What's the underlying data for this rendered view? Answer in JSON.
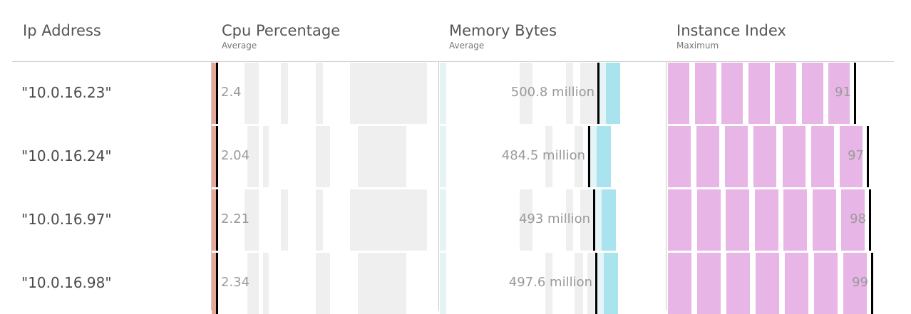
{
  "columns": [
    {
      "title": "Ip Address",
      "subtitle": ""
    },
    {
      "title": "Cpu Percentage",
      "subtitle": "Average"
    },
    {
      "title": "Memory Bytes",
      "subtitle": "Average"
    },
    {
      "title": "Instance Index",
      "subtitle": "Maximum"
    }
  ],
  "colors": {
    "cpu": "#e8a898",
    "memory": "#a9e3ee",
    "instance": "#e7b5e6",
    "marker": "#000000",
    "background_bars": "#efefef"
  },
  "chart_data": {
    "type": "table",
    "rows": [
      {
        "ip": "\"10.0.16.23\"",
        "cpu": 2.4,
        "cpu_label": "2.4",
        "memory": 500.8,
        "memory_label": "500.8 million",
        "instance": 91,
        "instance_label": "91"
      },
      {
        "ip": "\"10.0.16.24\"",
        "cpu": 2.04,
        "cpu_label": "2.04",
        "memory": 484.5,
        "memory_label": "484.5 million",
        "instance": 97,
        "instance_label": "97"
      },
      {
        "ip": "\"10.0.16.97\"",
        "cpu": 2.21,
        "cpu_label": "2.21",
        "memory": 493,
        "memory_label": "493 million",
        "instance": 98,
        "instance_label": "98"
      },
      {
        "ip": "\"10.0.16.98\"",
        "cpu": 2.34,
        "cpu_label": "2.34",
        "memory": 497.6,
        "memory_label": "497.6 million",
        "instance": 99,
        "instance_label": "99"
      }
    ]
  }
}
